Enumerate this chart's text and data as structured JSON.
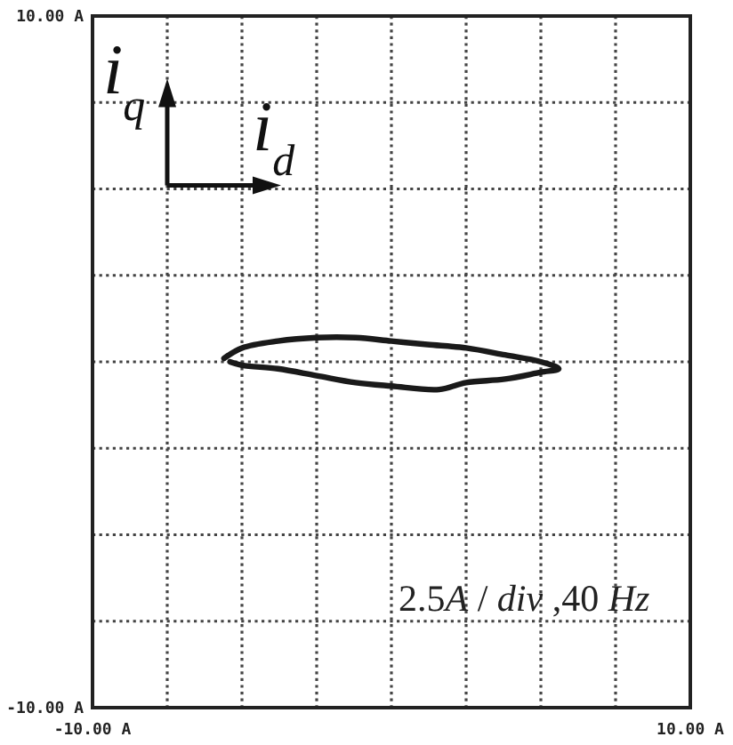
{
  "chart_data": {
    "type": "line",
    "xlabel": "i$_{d}$",
    "ylabel": "i$_{q}$",
    "x": [
      -5.6,
      -5,
      -3.8,
      -2.5,
      -1.2,
      0,
      1.2,
      2.5,
      3.8,
      5,
      5.6,
      5,
      3.8,
      2.5,
      1.6,
      0,
      -1.2,
      -2.5,
      -3.8,
      -5,
      -5.4
    ],
    "values": [
      0.1,
      0.4,
      0.6,
      0.7,
      0.7,
      0.6,
      0.5,
      0.4,
      0.2,
      0.0,
      -0.2,
      -0.3,
      -0.5,
      -0.6,
      -0.8,
      -0.7,
      -0.6,
      -0.4,
      -0.2,
      -0.1,
      0.0
    ],
    "color": "#1a1a1a",
    "line_style": "solid",
    "xlim": [
      -10,
      10
    ],
    "ylim": [
      -10,
      10
    ],
    "xticks": [
      {
        "value": -10,
        "label": "-10.00 A"
      },
      {
        "value": -7.5,
        "label": null
      },
      {
        "value": -5,
        "label": null
      },
      {
        "value": -2.5,
        "label": null
      },
      {
        "value": 0,
        "label": null
      },
      {
        "value": 2.5,
        "label": null
      },
      {
        "value": 5,
        "label": null
      },
      {
        "value": 7.5,
        "label": null
      },
      {
        "value": 10,
        "label": "10.00 A"
      }
    ],
    "yticks": [
      {
        "value": -10,
        "label": "-10.00 A"
      },
      {
        "value": -7.5,
        "label": null
      },
      {
        "value": -5,
        "label": null
      },
      {
        "value": -2.5,
        "label": null
      },
      {
        "value": 0,
        "label": null
      },
      {
        "value": 2.5,
        "label": null
      },
      {
        "value": 5,
        "label": null
      },
      {
        "value": 7.5,
        "label": null
      },
      {
        "value": 10,
        "label": "10.00 A"
      }
    ],
    "grid": true,
    "annotations": [
      "2.5A / div ,40 Hz"
    ]
  }
}
